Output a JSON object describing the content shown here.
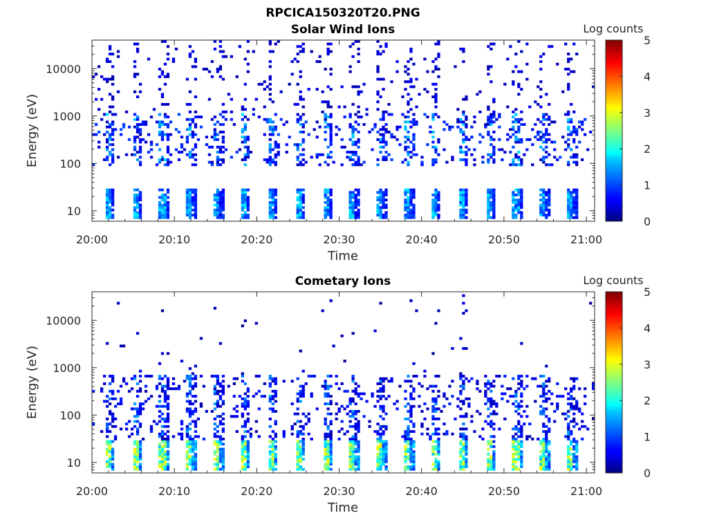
{
  "figure_title": "RPCICA150320T20.PNG",
  "chart_data": [
    {
      "type": "heatmap",
      "title": "Solar Wind Ions",
      "xlabel": "Time",
      "ylabel": "Energy (eV)",
      "x_range": [
        "20:00",
        "21:01"
      ],
      "x_ticks": [
        "20:00",
        "20:10",
        "20:20",
        "20:30",
        "20:40",
        "20:50",
        "21:00"
      ],
      "y_scale": "log",
      "y_range": [
        6,
        40000
      ],
      "y_ticks": [
        "10",
        "100",
        "1000",
        "10000"
      ],
      "colorbar": {
        "label": "Log counts",
        "range": [
          0,
          5
        ],
        "ticks": [
          "0",
          "1",
          "2",
          "3",
          "4",
          "5"
        ]
      },
      "sweep_period_minutes": 3.3,
      "low_energy_band_eV": [
        6,
        28
      ],
      "low_energy_log_counts": 1.6,
      "mid_energy_band_eV": [
        90,
        1200
      ],
      "mid_energy_log_counts": 0.6,
      "high_energy_sparse_log_counts": 0.2
    },
    {
      "type": "heatmap",
      "title": "Cometary Ions",
      "xlabel": "Time",
      "ylabel": "Energy (eV)",
      "x_range": [
        "20:00",
        "21:01"
      ],
      "x_ticks": [
        "20:00",
        "20:10",
        "20:20",
        "20:30",
        "20:40",
        "20:50",
        "21:00"
      ],
      "y_scale": "log",
      "y_range": [
        6,
        40000
      ],
      "y_ticks": [
        "10",
        "100",
        "1000",
        "10000"
      ],
      "colorbar": {
        "label": "Log counts",
        "range": [
          0,
          5
        ],
        "ticks": [
          "0",
          "1",
          "2",
          "3",
          "4",
          "5"
        ]
      },
      "sweep_period_minutes": 3.3,
      "low_energy_band_eV": [
        6,
        28
      ],
      "low_energy_log_counts": 2.8,
      "mid_energy_band_eV": [
        30,
        700
      ],
      "mid_energy_log_counts": 0.5,
      "high_energy_sparse_log_counts": 0.1
    }
  ]
}
